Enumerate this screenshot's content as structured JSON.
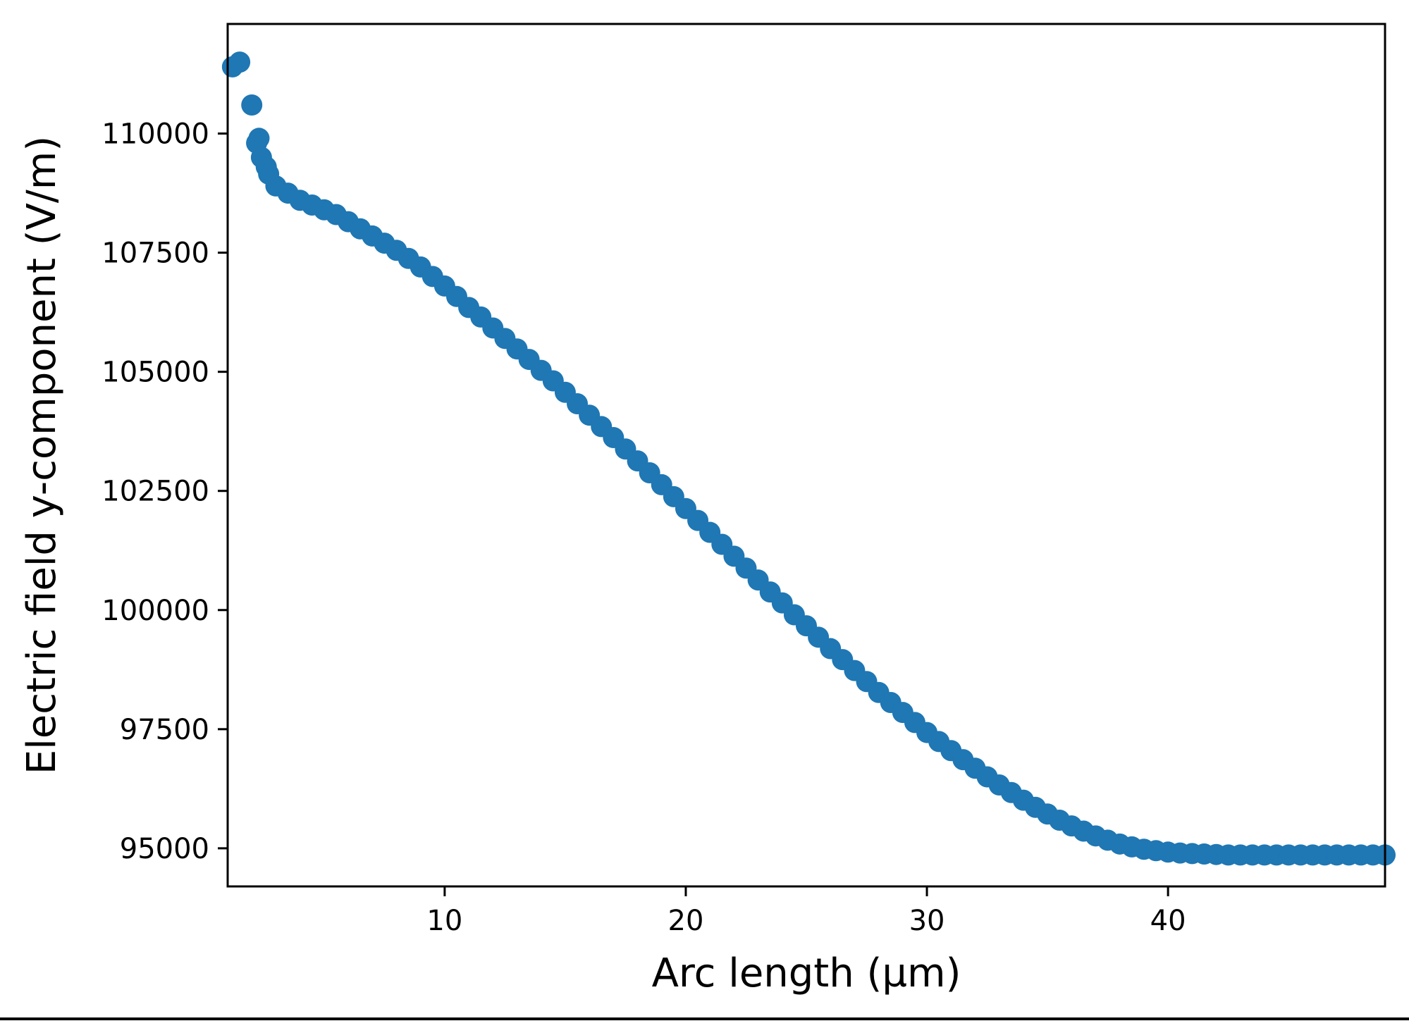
{
  "chart_data": {
    "type": "scatter",
    "title": "",
    "xlabel": "Arc length (µm)",
    "ylabel": "Electric field y-component (V/m)",
    "xlim": [
      1.0,
      49.0
    ],
    "ylim": [
      94200,
      112300
    ],
    "xticks": [
      10,
      20,
      30,
      40
    ],
    "xtick_labels": [
      "10",
      "20",
      "30",
      "40"
    ],
    "yticks": [
      95000,
      97500,
      100000,
      102500,
      105000,
      107500,
      110000
    ],
    "ytick_labels": [
      "95000",
      "97500",
      "100000",
      "102500",
      "105000",
      "107500",
      "110000"
    ],
    "grid": false,
    "legend": "none",
    "marker_color": "#1f77b4",
    "series": [
      {
        "x": [
          1.5,
          2.0,
          2.3,
          2.6,
          3.0,
          3.5,
          4.0,
          4.5,
          5.0,
          5.5,
          6.0,
          6.5,
          7.0,
          7.5,
          8.0,
          8.5,
          9.0,
          9.5,
          10.0,
          10.5,
          11.0,
          11.5,
          12.0,
          12.5,
          13.0,
          13.5,
          14.0,
          14.5,
          15.0,
          15.5,
          16.0,
          16.5,
          17.0,
          17.5,
          18.0,
          18.5,
          19.0,
          19.5,
          20.0,
          20.5,
          21.0,
          21.5,
          22.0,
          22.5,
          23.0,
          23.5,
          24.0,
          24.5,
          25.0,
          25.5,
          26.0,
          26.5,
          27.0,
          27.5,
          28.0,
          28.5,
          29.0,
          29.5,
          30.0,
          30.5,
          31.0,
          31.5,
          32.0,
          32.5,
          33.0,
          33.5,
          34.0,
          34.5,
          35.0,
          35.5,
          36.0,
          36.5,
          37.0,
          37.5,
          38.0,
          38.5,
          39.0,
          39.5,
          40.0,
          40.5,
          41.0,
          41.5,
          42.0,
          42.5,
          43.0,
          43.5,
          44.0,
          44.5,
          45.0,
          45.5,
          46.0,
          46.5,
          47.0,
          47.5,
          48.0,
          48.5,
          49.0
        ],
        "y": [
          111500,
          110600,
          109900,
          109300,
          108900,
          108750,
          108600,
          108500,
          108400,
          108300,
          108150,
          108000,
          107850,
          107700,
          107550,
          107380,
          107200,
          107000,
          106800,
          106580,
          106350,
          106150,
          105920,
          105700,
          105480,
          105260,
          105030,
          104810,
          104570,
          104330,
          104090,
          103850,
          103620,
          103380,
          103130,
          102880,
          102630,
          102380,
          102130,
          101880,
          101630,
          101380,
          101130,
          100880,
          100630,
          100380,
          100150,
          99900,
          99670,
          99430,
          99190,
          98960,
          98730,
          98500,
          98270,
          98060,
          97850,
          97640,
          97430,
          97240,
          97050,
          96860,
          96680,
          96500,
          96330,
          96170,
          96010,
          95860,
          95720,
          95590,
          95470,
          95360,
          95260,
          95170,
          95090,
          95030,
          94980,
          94950,
          94920,
          94900,
          94890,
          94880,
          94870,
          94860,
          94860,
          94860,
          94860,
          94860,
          94860,
          94860,
          94860,
          94860,
          94860,
          94860,
          94860,
          94860,
          94860
        ],
        "extra_points": [
          {
            "x": 1.2,
            "y": 111400
          },
          {
            "x": 2.2,
            "y": 109800
          },
          {
            "x": 2.4,
            "y": 109500
          },
          {
            "x": 2.7,
            "y": 109150
          }
        ]
      }
    ]
  }
}
